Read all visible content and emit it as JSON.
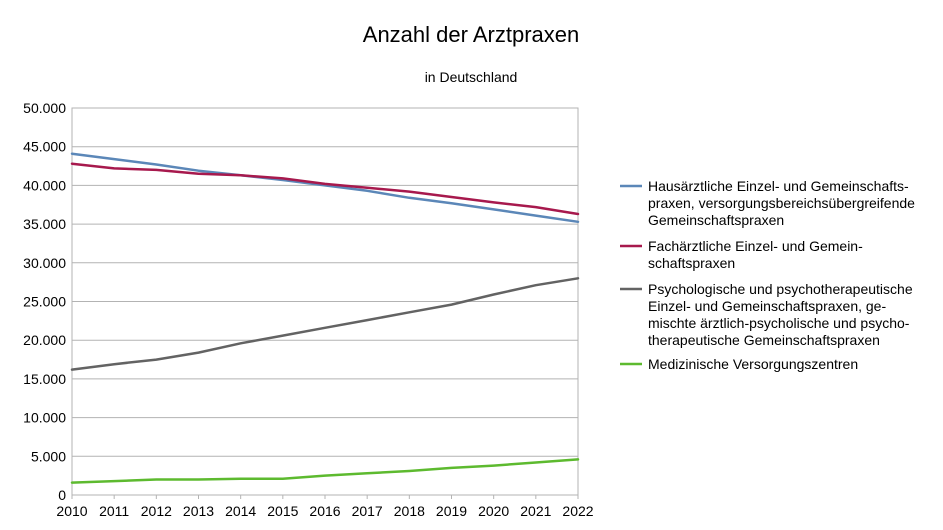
{
  "chart_data": {
    "type": "line",
    "title": "Anzahl der Arztpraxen",
    "subtitle": "in Deutschland",
    "xlabel": "",
    "ylabel": "",
    "x": [
      "2010",
      "2011",
      "2012",
      "2013",
      "2014",
      "2015",
      "2016",
      "2017",
      "2018",
      "2019",
      "2020",
      "2021",
      "2022"
    ],
    "ylim": [
      0,
      50000
    ],
    "yticks": [
      0,
      5000,
      10000,
      15000,
      20000,
      25000,
      30000,
      35000,
      40000,
      45000,
      50000
    ],
    "ytick_labels": [
      "0",
      "5.000",
      "10.000",
      "15.000",
      "20.000",
      "25.000",
      "30.000",
      "35.000",
      "40.000",
      "45.000",
      "50.000"
    ],
    "grid": "horizontal",
    "legend_position": "right",
    "series": [
      {
        "name_lines": [
          "Hausärztliche Einzel- und Gemeinschafts-",
          "praxen, versorgungsbereichsübergreifende",
          "Gemeinschaftspraxen"
        ],
        "color": "#5b87b8",
        "values": [
          44100,
          43400,
          42700,
          41900,
          41300,
          40700,
          40000,
          39300,
          38400,
          37700,
          36900,
          36100,
          35300
        ]
      },
      {
        "name_lines": [
          "Fachärztliche Einzel- und Gemein-",
          "schaftspraxen"
        ],
        "color": "#a7194d",
        "values": [
          42800,
          42200,
          42000,
          41500,
          41300,
          40900,
          40200,
          39700,
          39200,
          38500,
          37800,
          37200,
          36300
        ]
      },
      {
        "name_lines": [
          "Psychologische und psychotherapeutische",
          "Einzel- und Gemeinschaftspraxen, ge-",
          "mischte ärztlich-psycholische und psycho-",
          "therapeutische Gemeinschaftspraxen"
        ],
        "color": "#636363",
        "values": [
          16200,
          16900,
          17500,
          18400,
          19600,
          20600,
          21600,
          22600,
          23600,
          24600,
          25900,
          27100,
          28000
        ]
      },
      {
        "name_lines": [
          "Medizinische Versorgungszentren"
        ],
        "color": "#5dba2f",
        "values": [
          1600,
          1800,
          2000,
          2000,
          2100,
          2100,
          2500,
          2800,
          3100,
          3500,
          3800,
          4200,
          4600
        ]
      }
    ]
  }
}
